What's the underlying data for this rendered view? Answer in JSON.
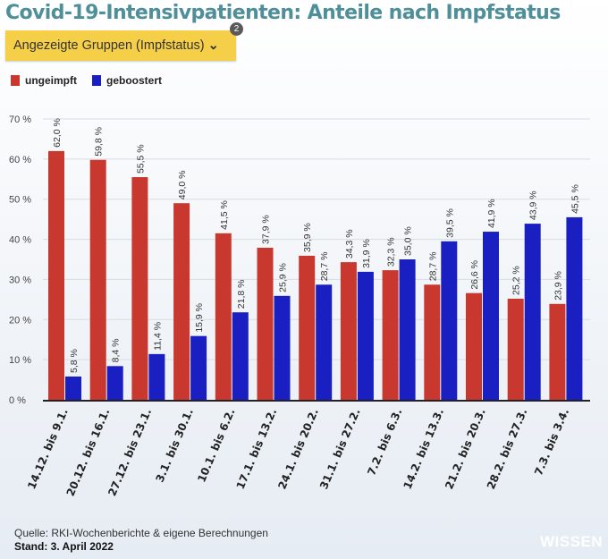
{
  "title": "Covid-19-Intensivpatienten: Anteile nach Impfstatus",
  "dropdown": {
    "label": "Angezeigte Gruppen (Impfstatus)",
    "chevron": "⌄",
    "badge": "2"
  },
  "footer": {
    "source": "Quelle: RKI-Wochenberichte & eigene Berechnungen",
    "stand": "Stand: 3. April 2022",
    "logo": "WISSEN"
  },
  "chart_data": {
    "type": "bar",
    "title": "Covid-19-Intensivpatienten: Anteile nach Impfstatus",
    "xlabel": "",
    "ylabel": "",
    "ylim": [
      0,
      70
    ],
    "yticks": [
      "0 %",
      "10 %",
      "20 %",
      "30 %",
      "40 %",
      "50 %",
      "60 %",
      "70 %"
    ],
    "grid": true,
    "legend": "top-left",
    "categories": [
      "14.12. bis 9.1.",
      "20.12. bis 16.1.",
      "27.12. bis 23.1.",
      "3.1. bis 30.1.",
      "10.1. bis 6.2.",
      "17.1. bis 13.2.",
      "24.1. bis 20.2.",
      "31.1. bis 27.2.",
      "7.2. bis 6.3.",
      "14.2. bis 13.3.",
      "21.2. bis 20.3.",
      "28.2. bis 27.3.",
      "7.3. bis 3.4."
    ],
    "series": [
      {
        "name": "ungeimpft",
        "color": "#c8382f",
        "values": [
          62.0,
          59.8,
          55.5,
          49.0,
          41.5,
          37.9,
          35.9,
          34.3,
          32.3,
          28.7,
          26.6,
          25.2,
          23.9
        ],
        "labels": [
          "62,0 %",
          "59,8 %",
          "55,5 %",
          "49,0 %",
          "41,5 %",
          "37,9 %",
          "35,9 %",
          "34,3 %",
          "32,3 %",
          "28,7 %",
          "26,6 %",
          "25,2 %",
          "23,9 %"
        ]
      },
      {
        "name": "geboostert",
        "color": "#1a1fc2",
        "values": [
          5.8,
          8.4,
          11.4,
          15.9,
          21.8,
          25.9,
          28.7,
          31.9,
          35.0,
          39.5,
          41.9,
          43.9,
          45.5
        ],
        "labels": [
          "5,8 %",
          "8,4 %",
          "11,4 %",
          "15,9 %",
          "21,8 %",
          "25,9 %",
          "28,7 %",
          "31,9 %",
          "35,0 %",
          "39,5 %",
          "41,9 %",
          "43,9 %",
          "45,5 %"
        ]
      }
    ]
  }
}
